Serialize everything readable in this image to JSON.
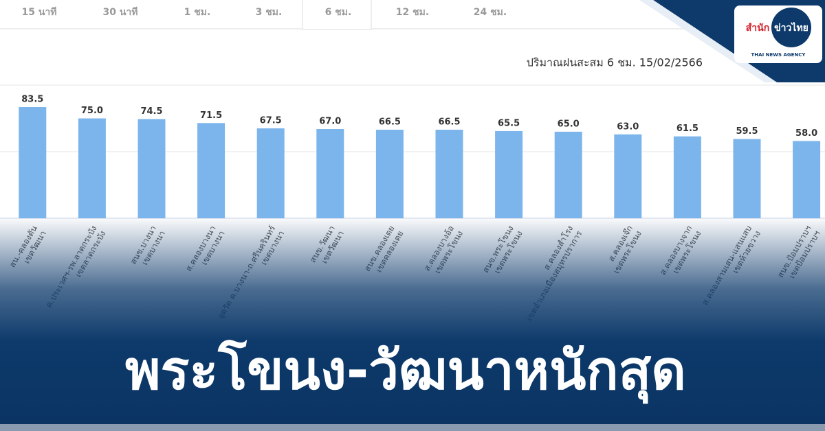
{
  "tabs": [
    "15 นาที",
    "30 นาที",
    "1 ชม.",
    "3 ชม.",
    "6 ชม.",
    "12 ชม.",
    "24 ชม."
  ],
  "active_tab": 4,
  "logo": {
    "brand_prefix": "สำนัก",
    "brand_circle": "ข่าวไทย",
    "brand_sub": "THAI NEWS AGENCY"
  },
  "headline": "พระโขนง-วัฒนาหนักสุด",
  "chart_data": {
    "type": "bar",
    "title": "ปริมาณฝนสะสม 6 ชม. 15/02/2566",
    "categories": [
      [
        "สน.-คลองตัน",
        "เขตวัฒนา"
      ],
      [
        "ค.ประเวศฯ-รพ.ลาดกระบัง",
        "เขตลาดกระบัง"
      ],
      [
        "สนข.บางนา",
        "เขตบางนา"
      ],
      [
        "ส.คลองบางนา",
        "เขตบางนา"
      ],
      [
        "จุดวัด ค.บางนา-ถ.ศรีนครินทร์",
        "เขตบางนา"
      ],
      [
        "สนข.วัฒนา",
        "เขตวัฒนา"
      ],
      [
        "สนข.คลองเตย",
        "เขตคลองเตย"
      ],
      [
        "ส.คลองบางอ้อ",
        "เขตพระโขนง"
      ],
      [
        "สนข.พระโขนง",
        "เขตพระโขนง"
      ],
      [
        "ส.คลองสำโรง",
        "เขตอำเภอเมืองสมุทรปราการ"
      ],
      [
        "ส.คลองเจ๊ก",
        "เขตพระโขนง"
      ],
      [
        "ส.คลองบางจาก",
        "เขตพระโขนง"
      ],
      [
        "ส.คลองสามเสน-แสนแสบ",
        "เขตห้วยขวาง"
      ],
      [
        "สนข.ป้อมปราบฯ",
        "เขตป้อมปราบฯ"
      ]
    ],
    "values": [
      83.5,
      75,
      74.5,
      71.5,
      67.5,
      67,
      66.5,
      66.5,
      65.5,
      65,
      63,
      61.5,
      59.5,
      58
    ],
    "value_labels": [
      "83.5",
      "75.0",
      "74.5",
      "71.5",
      "67.5",
      "67.0",
      "66.5",
      "66.5",
      "65.5",
      "65.0",
      "63.0",
      "61.5",
      "59.5",
      "58.0"
    ],
    "color": "#7cb5ec",
    "ylim": [
      0,
      100
    ],
    "yticks": [
      0,
      50,
      100
    ],
    "grid": true
  }
}
